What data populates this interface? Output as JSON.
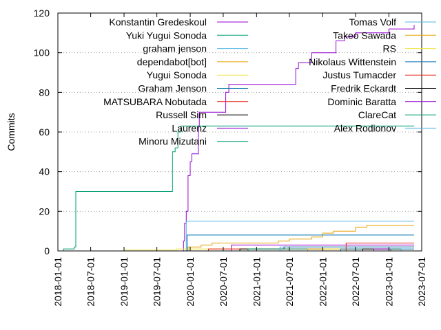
{
  "chart_data": {
    "type": "line",
    "xlabel": "",
    "ylabel": "Commits",
    "xlim": [
      "2018-01-01",
      "2023-07-01"
    ],
    "ylim": [
      0,
      120
    ],
    "x_ticks": [
      "2018-01-01",
      "2018-07-01",
      "2019-01-01",
      "2019-07-01",
      "2020-01-01",
      "2020-07-01",
      "2021-01-01",
      "2021-07-01",
      "2022-01-01",
      "2022-07-01",
      "2023-01-01",
      "2023-07-01"
    ],
    "y_ticks": [
      0,
      20,
      40,
      60,
      80,
      100,
      120
    ],
    "grid": "horizontal dotted",
    "legend_position": "inside top, two columns",
    "series": [
      {
        "name": "Konstantin Gredeskoul",
        "color": "#9400d3",
        "step": true,
        "points": [
          [
            "2019-11-20",
            0
          ],
          [
            "2019-11-25",
            5
          ],
          [
            "2019-12-01",
            14
          ],
          [
            "2019-12-10",
            20
          ],
          [
            "2019-12-20",
            38
          ],
          [
            "2020-01-01",
            45
          ],
          [
            "2020-01-10",
            49
          ],
          [
            "2020-02-10",
            49
          ],
          [
            "2020-02-15",
            63
          ],
          [
            "2020-02-20",
            70
          ],
          [
            "2020-07-01",
            70
          ],
          [
            "2020-07-15",
            80
          ],
          [
            "2020-08-01",
            84
          ],
          [
            "2021-08-01",
            84
          ],
          [
            "2021-08-05",
            92
          ],
          [
            "2021-08-20",
            95
          ],
          [
            "2021-11-01",
            100
          ],
          [
            "2022-03-01",
            100
          ],
          [
            "2022-03-15",
            106
          ],
          [
            "2022-05-01",
            108
          ],
          [
            "2022-07-01",
            110
          ],
          [
            "2023-01-01",
            112
          ],
          [
            "2023-05-20",
            114
          ]
        ]
      },
      {
        "name": "Yuki Yugui Sonoda",
        "color": "#009e73",
        "step": true,
        "points": [
          [
            "2018-01-20",
            0
          ],
          [
            "2018-02-01",
            1
          ],
          [
            "2018-04-01",
            2
          ],
          [
            "2018-04-10",
            30
          ],
          [
            "2019-09-20",
            30
          ],
          [
            "2019-09-25",
            50
          ],
          [
            "2019-10-10",
            52
          ],
          [
            "2019-10-25",
            60
          ],
          [
            "2019-11-10",
            63
          ],
          [
            "2023-05-20",
            63
          ]
        ]
      },
      {
        "name": "graham jenson",
        "color": "#56b4e9",
        "step": true,
        "points": [
          [
            "2019-11-20",
            0
          ],
          [
            "2019-12-10",
            15
          ],
          [
            "2023-05-20",
            15
          ]
        ]
      },
      {
        "name": "dependabot[bot]",
        "color": "#e69f00",
        "step": true,
        "points": [
          [
            "2019-12-01",
            0
          ],
          [
            "2019-12-20",
            2
          ],
          [
            "2020-03-01",
            3
          ],
          [
            "2020-05-01",
            4
          ],
          [
            "2021-02-01",
            4
          ],
          [
            "2021-05-01",
            5
          ],
          [
            "2021-07-01",
            6
          ],
          [
            "2021-11-01",
            7
          ],
          [
            "2022-01-01",
            9
          ],
          [
            "2022-03-01",
            10
          ],
          [
            "2022-07-01",
            12
          ],
          [
            "2022-09-01",
            13
          ],
          [
            "2023-05-20",
            13
          ]
        ]
      },
      {
        "name": "Yugui Sonoda",
        "color": "#f0e442",
        "step": true,
        "points": [
          [
            "2018-07-01",
            0
          ],
          [
            "2019-01-01",
            0.5
          ],
          [
            "2019-10-20",
            1
          ],
          [
            "2023-05-20",
            1
          ]
        ]
      },
      {
        "name": "Graham Jenson",
        "color": "#0072b2",
        "step": true,
        "points": [
          [
            "2019-12-01",
            0
          ],
          [
            "2019-12-15",
            8
          ],
          [
            "2023-05-20",
            8
          ]
        ]
      },
      {
        "name": "MATSUBARA Nobutada",
        "color": "#e51e10",
        "step": true,
        "points": [
          [
            "2020-04-01",
            0
          ],
          [
            "2020-04-10",
            1
          ],
          [
            "2023-05-20",
            1
          ]
        ]
      },
      {
        "name": "Russell Sim",
        "color": "#000000",
        "step": true,
        "points": [
          [
            "2020-09-01",
            0
          ],
          [
            "2020-10-01",
            1
          ],
          [
            "2021-06-01",
            2
          ],
          [
            "2023-05-20",
            2
          ]
        ]
      },
      {
        "name": "Laurenz",
        "color": "#9400d3",
        "step": true,
        "points": [
          [
            "2020-08-01",
            0
          ],
          [
            "2020-08-15",
            3
          ],
          [
            "2023-05-20",
            3
          ]
        ]
      },
      {
        "name": "Minoru Mizutani",
        "color": "#009e73",
        "step": true,
        "points": [
          [
            "2020-11-01",
            0
          ],
          [
            "2020-11-15",
            1
          ],
          [
            "2023-05-20",
            1
          ]
        ]
      },
      {
        "name": "Tomas Volf",
        "color": "#56b4e9",
        "step": true,
        "points": [
          [
            "2021-05-01",
            0
          ],
          [
            "2021-05-10",
            2
          ],
          [
            "2023-05-20",
            2
          ]
        ]
      },
      {
        "name": "Takeo Sawada",
        "color": "#e69f00",
        "step": true,
        "points": [
          [
            "2021-10-01",
            0
          ],
          [
            "2021-10-10",
            1
          ],
          [
            "2023-05-20",
            1
          ]
        ]
      },
      {
        "name": "RS",
        "color": "#f0e442",
        "step": true,
        "points": [
          [
            "2022-01-01",
            0
          ],
          [
            "2022-01-10",
            1
          ],
          [
            "2023-05-20",
            1
          ]
        ]
      },
      {
        "name": "Nikolaus Wittenstein",
        "color": "#0072b2",
        "step": true,
        "points": [
          [
            "2022-04-01",
            0
          ],
          [
            "2022-04-10",
            1
          ],
          [
            "2023-05-20",
            1
          ]
        ]
      },
      {
        "name": "Justus Tumacder",
        "color": "#e51e10",
        "step": true,
        "points": [
          [
            "2022-05-01",
            0
          ],
          [
            "2022-05-10",
            4
          ],
          [
            "2023-05-20",
            4
          ]
        ]
      },
      {
        "name": "Fredrik Eckardt",
        "color": "#000000",
        "step": true,
        "points": [
          [
            "2022-08-01",
            0
          ],
          [
            "2022-08-10",
            1
          ],
          [
            "2023-05-20",
            1
          ]
        ]
      },
      {
        "name": "Dominic Baratta",
        "color": "#9400d3",
        "step": true,
        "points": [
          [
            "2022-10-01",
            0
          ],
          [
            "2022-10-10",
            1
          ],
          [
            "2023-05-20",
            1
          ]
        ]
      },
      {
        "name": "ClareCat",
        "color": "#009e73",
        "step": true,
        "points": [
          [
            "2023-01-01",
            0
          ],
          [
            "2023-01-10",
            1
          ],
          [
            "2023-05-20",
            1
          ]
        ]
      },
      {
        "name": "Alex Rodionov",
        "color": "#56b4e9",
        "step": true,
        "points": [
          [
            "2023-03-01",
            0
          ],
          [
            "2023-03-10",
            1
          ],
          [
            "2023-05-20",
            1
          ]
        ]
      }
    ]
  }
}
